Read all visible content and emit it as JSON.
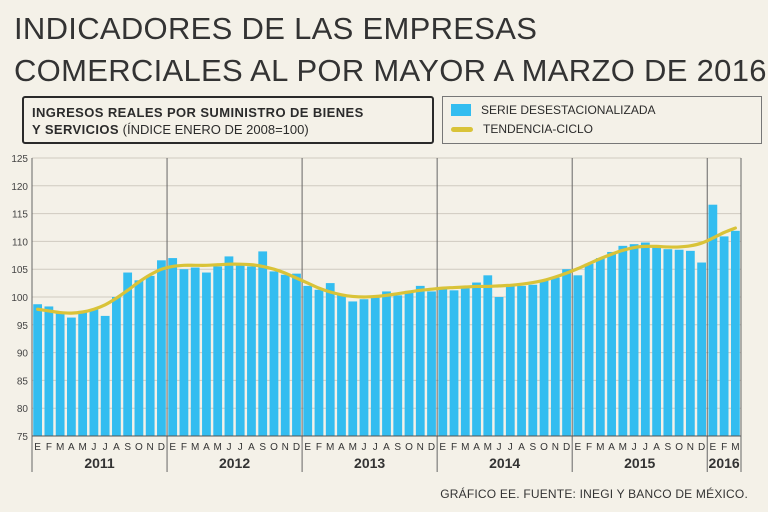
{
  "header": {
    "title_line1": "INDICADORES DE LAS EMPRESAS",
    "title_line2": "COMERCIALES AL POR MAYOR A MARZO DE 2016"
  },
  "subtitle": {
    "bold_line1": "INGRESOS REALES POR SUMINISTRO DE BIENES",
    "bold_line2": "Y SERVICIOS",
    "note": "(ÍNDICE ENERO DE 2008=100)"
  },
  "legend": {
    "series_bar": "SERIE DESESTACIONALIZADA",
    "series_line": "TENDENCIA-CICLO"
  },
  "footer": {
    "source": "GRÁFICO EE. FUENTE: INEGI Y BANCO DE MÉXICO."
  },
  "colors": {
    "bar": "#33bdf0",
    "trend": "#d9c338",
    "grid": "#cfcac0",
    "year_divider": "#666666"
  },
  "chart_data": {
    "type": "bar",
    "title": "Ingresos reales por suministro de bienes y servicios (Índice enero de 2008=100)",
    "xlabel": "",
    "ylabel": "",
    "ylim": [
      75,
      125
    ],
    "yticks": [
      75,
      80,
      85,
      90,
      95,
      100,
      105,
      110,
      115,
      120,
      125
    ],
    "grid": true,
    "legend_position": "top-right",
    "years": [
      "2011",
      "2012",
      "2013",
      "2014",
      "2015",
      "2016"
    ],
    "month_letters": [
      "E",
      "F",
      "M",
      "A",
      "M",
      "J",
      "J",
      "A",
      "S",
      "O",
      "N",
      "D",
      "E",
      "F",
      "M",
      "A",
      "M",
      "J",
      "J",
      "A",
      "S",
      "O",
      "N",
      "D",
      "E",
      "F",
      "M",
      "A",
      "M",
      "J",
      "J",
      "A",
      "S",
      "O",
      "N",
      "D",
      "E",
      "F",
      "M",
      "A",
      "M",
      "J",
      "J",
      "A",
      "S",
      "O",
      "N",
      "D",
      "E",
      "F",
      "M",
      "A",
      "M",
      "J",
      "J",
      "A",
      "S",
      "O",
      "N",
      "D",
      "E",
      "F",
      "M"
    ],
    "series": [
      {
        "name": "SERIE DESESTACIONALIZADA",
        "kind": "bar",
        "values": [
          98.7,
          98.3,
          97.2,
          96.3,
          97.5,
          97.8,
          96.6,
          100.0,
          104.4,
          103.0,
          103.8,
          106.6,
          107.0,
          105.0,
          105.3,
          104.4,
          105.5,
          107.3,
          105.9,
          105.5,
          108.2,
          104.6,
          104.0,
          104.2,
          102.0,
          101.3,
          102.5,
          100.5,
          99.2,
          99.6,
          100.2,
          101.0,
          100.3,
          101.1,
          102.0,
          101.0,
          101.5,
          101.2,
          101.6,
          102.6,
          103.9,
          100.0,
          102.0,
          102.0,
          102.2,
          103.0,
          103.5,
          105.0,
          103.9,
          106.0,
          107.0,
          108.1,
          109.2,
          109.5,
          109.8,
          109.0,
          108.6,
          108.5,
          108.3,
          106.2,
          116.6,
          110.9,
          111.9
        ]
      },
      {
        "name": "TENDENCIA-CICLO",
        "kind": "line",
        "values": [
          97.8,
          97.5,
          97.2,
          97.1,
          97.3,
          97.8,
          98.6,
          99.8,
          101.2,
          102.7,
          104.0,
          105.0,
          105.5,
          105.7,
          105.7,
          105.7,
          105.8,
          105.9,
          105.9,
          105.8,
          105.5,
          105.0,
          104.3,
          103.4,
          102.5,
          101.6,
          100.9,
          100.4,
          100.1,
          100.0,
          100.1,
          100.3,
          100.6,
          100.9,
          101.2,
          101.4,
          101.6,
          101.7,
          101.8,
          101.9,
          101.9,
          102.0,
          102.1,
          102.3,
          102.6,
          103.0,
          103.6,
          104.3,
          105.1,
          106.0,
          106.9,
          107.7,
          108.4,
          108.9,
          109.1,
          109.1,
          109.0,
          109.0,
          109.2,
          109.7,
          110.6,
          111.6,
          112.4
        ]
      }
    ]
  }
}
